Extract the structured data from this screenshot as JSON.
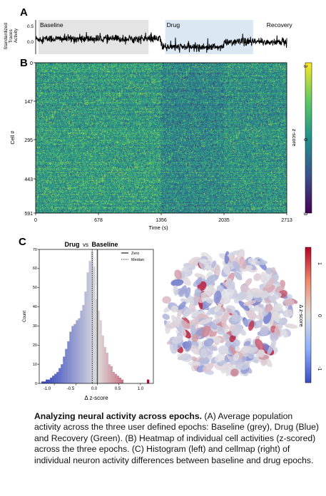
{
  "panels": {
    "a": "A",
    "b": "B",
    "c": "C"
  },
  "colors": {
    "baseline": "#e4e4e4",
    "drug": "#dbe7f3",
    "recovery": "#d9f3f8",
    "trace": "#000000",
    "hist_negative": "#4a6fe3",
    "hist_positive": "#d65a3e"
  },
  "chart_data": [
    {
      "type": "line",
      "panel": "A",
      "ylabel": "Standardized Traces Activity",
      "ylabel_lines": [
        "Standardized",
        "Traces",
        "Activity"
      ],
      "yticks": [
        "0.5",
        "0.0"
      ],
      "ylim": [
        -0.35,
        0.7
      ],
      "xlim": [
        0,
        2713
      ],
      "epochs": [
        {
          "name": "Baseline",
          "start": 0,
          "end": 1220,
          "color": "#e4e4e4"
        },
        {
          "name": "Drug",
          "start": 1400,
          "end": 2350,
          "color": "#dbe7f3"
        },
        {
          "name": "Recovery",
          "start": 2480,
          "end": 3000,
          "color": "#d9f3f8"
        }
      ],
      "segment_means": [
        {
          "x": [
            0,
            1356
          ],
          "y": 0.12
        },
        {
          "x": [
            1356,
            2035
          ],
          "y": -0.13
        },
        {
          "x": [
            2035,
            2713
          ],
          "y": 0.02
        }
      ]
    },
    {
      "type": "heatmap",
      "panel": "B",
      "xlabel": "Time (s)",
      "ylabel": "Cell #",
      "xticks": [
        "0",
        "678",
        "1356",
        "2035",
        "2713"
      ],
      "yticks": [
        "0",
        "147",
        "295",
        "443",
        "591"
      ],
      "xlim": [
        0,
        2713
      ],
      "ylim": [
        0,
        591
      ],
      "colorbar": {
        "label": "z-score",
        "ticks": [
          "3",
          "0",
          "-3"
        ],
        "range": [
          -3,
          3
        ],
        "colormap": "viridis"
      }
    },
    {
      "type": "bar",
      "panel": "C",
      "title_parts": [
        "Drug",
        "vs",
        "Baseline"
      ],
      "xlabel": "Δ z-score",
      "ylabel": "Count",
      "xlim": [
        -1.35,
        1.3
      ],
      "ylim": [
        0,
        70
      ],
      "xticks": [
        "-1.0",
        "-0.5",
        "0.0",
        "0.5",
        "1.0"
      ],
      "yticks": [
        "0",
        "10",
        "20",
        "30",
        "40",
        "50",
        "60",
        "70"
      ],
      "legend": [
        {
          "label": "Zero",
          "style": "solid"
        },
        {
          "label": "Median",
          "style": "dotted"
        }
      ],
      "legend_position": "top-right",
      "median": -0.12,
      "bin_width": 0.05,
      "bins_start": -1.3,
      "values": [
        1,
        1,
        2,
        2,
        3,
        4,
        5,
        6,
        8,
        10,
        14,
        18,
        22,
        27,
        30,
        31,
        33,
        34,
        38,
        41,
        48,
        58,
        64,
        69,
        61,
        44,
        38,
        33,
        25,
        19,
        16,
        10,
        9,
        6,
        5,
        4,
        3,
        2,
        0,
        0,
        0,
        0,
        0,
        0,
        0,
        0,
        0,
        0,
        0,
        2
      ],
      "colorbar": {
        "label": "Δ z-score",
        "ticks": [
          "1",
          "0",
          "-1"
        ],
        "range": [
          -1.2,
          1.2
        ],
        "colormap": "coolwarm"
      }
    }
  ],
  "caption": {
    "title": "Analyzing neural activity across epochs.",
    "body": " (A) Average population activity across the three user defined epochs: Baseline (grey), Drug (Blue) and Recovery (Green). (B) Heatmap of individual cell activities (z-scored) across the three epochs. (C) Histogram (left) and cellmap (right) of individual neuron activity differences between baseline and drug epochs."
  }
}
